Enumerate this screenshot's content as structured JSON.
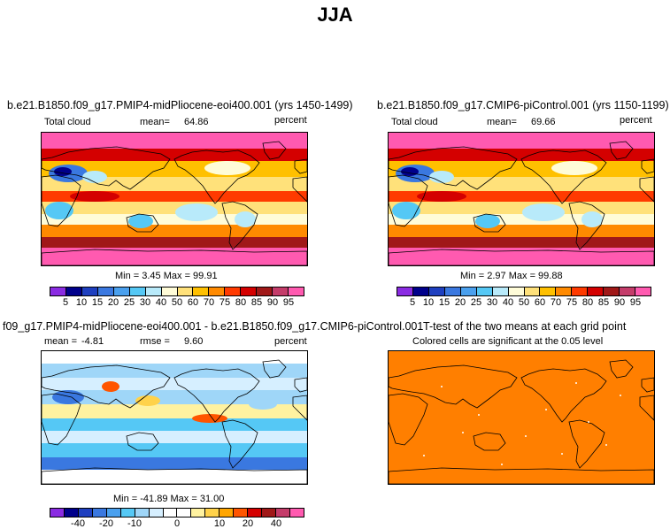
{
  "figure_title": "JJA",
  "panels": {
    "p1": {
      "title": "b.e21.B1850.f09_g17.PMIP4-midPliocene-eoi400.001 (yrs 1450-1499)",
      "variable": "Total cloud",
      "mean_label": "mean=",
      "mean_value": "64.86",
      "units": "percent",
      "minmax": "Min =    3.45  Max =   99.91"
    },
    "p2": {
      "title": "b.e21.B1850.f09_g17.CMIP6-piControl.001 (yrs 1150-1199)",
      "variable": "Total cloud",
      "mean_label": "mean=",
      "mean_value": "69.66",
      "units": "percent",
      "minmax": "Min =    2.97  Max =   99.88"
    },
    "p3": {
      "title": "f09_g17.PMIP4-midPliocene-eoi400.001 - b.e21.B1850.f09_g17.CMIP6-piControl.001",
      "mean_label": "mean =",
      "mean_value": "-4.81",
      "rmse_label": "rmse =",
      "rmse_value": "9.60",
      "units": "percent",
      "minmax": "Min = -41.89  Max =   31.00"
    },
    "p4": {
      "title": "T-test of the two means at each grid point",
      "subtitle": "Colored cells are significant at the 0.05 level"
    }
  },
  "colors": {
    "abs_bar": [
      "#8a2be2",
      "#00008b",
      "#1e3fbf",
      "#3a78e0",
      "#4aa0ee",
      "#55c8f5",
      "#b8eafa",
      "#fffcd8",
      "#ffe17a",
      "#ffc000",
      "#ff8a00",
      "#ff3a00",
      "#d40000",
      "#a01818",
      "#c43c6a",
      "#ff5ab0"
    ],
    "diff_bar": [
      "#8a2be2",
      "#00008b",
      "#1e3fbf",
      "#3a78e0",
      "#4aa0ee",
      "#55c8f5",
      "#9fd6f8",
      "#d6efff",
      "#ffffff",
      "#ffffff",
      "#fff2a0",
      "#ffd24a",
      "#ffa500",
      "#ff5500",
      "#d40000",
      "#a01818",
      "#c43c6a",
      "#ff5ab0"
    ],
    "ttest_fill": "#ff7f00"
  },
  "chart_data": [
    {
      "type": "heatmap",
      "title": "b.e21.B1850.f09_g17.PMIP4-midPliocene-eoi400.001 (yrs 1450-1499)",
      "variable": "Total cloud",
      "units": "percent",
      "mean": 64.86,
      "min": 3.45,
      "max": 99.91,
      "colorbar_ticks": [
        5,
        10,
        15,
        20,
        25,
        30,
        40,
        50,
        60,
        70,
        75,
        80,
        85,
        90,
        95
      ]
    },
    {
      "type": "heatmap",
      "title": "b.e21.B1850.f09_g17.CMIP6-piControl.001 (yrs 1150-1199)",
      "variable": "Total cloud",
      "units": "percent",
      "mean": 69.66,
      "min": 2.97,
      "max": 99.88,
      "colorbar_ticks": [
        5,
        10,
        15,
        20,
        25,
        30,
        40,
        50,
        60,
        70,
        75,
        80,
        85,
        90,
        95
      ]
    },
    {
      "type": "heatmap",
      "title": "f09_g17.PMIP4-midPliocene-eoi400.001 - b.e21.B1850.f09_g17.CMIP6-piControl.001",
      "units": "percent",
      "mean": -4.81,
      "rmse": 9.6,
      "min": -41.89,
      "max": 31.0,
      "colorbar_ticks": [
        -40,
        -20,
        -10,
        0,
        10,
        20,
        40
      ]
    },
    {
      "type": "heatmap",
      "title": "T-test of the two means at each grid point",
      "subtitle": "Colored cells are significant at the 0.05 level"
    }
  ]
}
